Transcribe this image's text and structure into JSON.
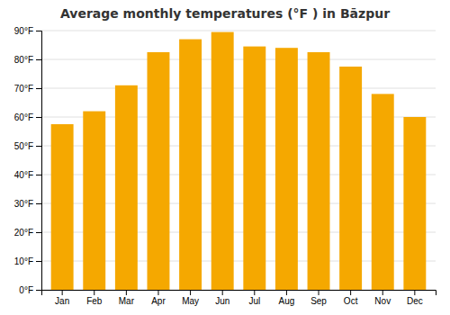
{
  "chart_data": {
    "type": "bar",
    "title": "Average monthly temperatures (°F ) in Bāzpur",
    "categories": [
      "Jan",
      "Feb",
      "Mar",
      "Apr",
      "May",
      "Jun",
      "Jul",
      "Aug",
      "Sep",
      "Oct",
      "Nov",
      "Dec"
    ],
    "values": [
      57.5,
      62,
      71,
      82.5,
      87,
      89.5,
      84.5,
      84,
      82.5,
      77.5,
      68,
      60
    ],
    "color": "#F5A800",
    "ylim": [
      0,
      90
    ],
    "yticks": [
      {
        "value": 0,
        "label": "0°F"
      },
      {
        "value": 10,
        "label": "10°F"
      },
      {
        "value": 20,
        "label": "20°F"
      },
      {
        "value": 30,
        "label": "30°F"
      },
      {
        "value": 40,
        "label": "40°F"
      },
      {
        "value": 50,
        "label": "50°F"
      },
      {
        "value": 60,
        "label": "60°F"
      },
      {
        "value": 70,
        "label": "70°F"
      },
      {
        "value": 80,
        "label": "80°F"
      },
      {
        "value": 90,
        "label": "90°F"
      }
    ],
    "grid": true
  }
}
